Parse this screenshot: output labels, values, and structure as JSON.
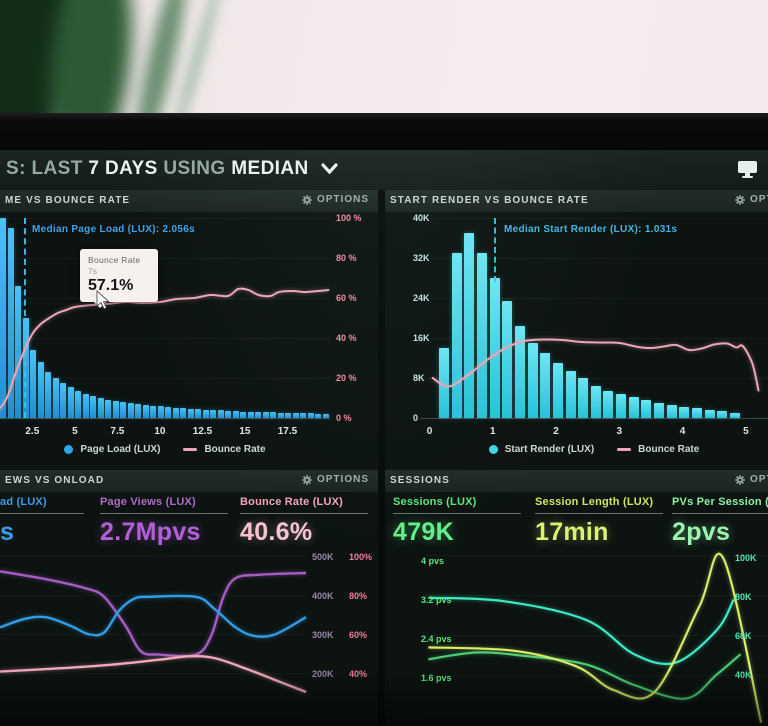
{
  "header": {
    "prefix": "S:",
    "word1": "LAST",
    "strong1": "7 DAYS",
    "word2": "USING",
    "strong2": "MEDIAN"
  },
  "panels": {
    "load_time": {
      "title": "ME VS BOUNCE RATE",
      "options": "OPTIONS",
      "median_label": "Median Page Load (LUX): 2.056s",
      "tooltip": {
        "title": "Bounce Rate",
        "sub": "7s",
        "value": "57.1%"
      },
      "y_right": [
        "100 %",
        "80 %",
        "60 %",
        "40 %",
        "20 %",
        "0 %"
      ],
      "x_ticks": [
        "2.5",
        "5",
        "7.5",
        "10",
        "12.5",
        "15",
        "17.5"
      ],
      "legend": {
        "bars": "Page Load (LUX)",
        "line": "Bounce Rate"
      }
    },
    "start_render": {
      "title": "START RENDER VS BOUNCE RATE",
      "options": "OPTIONS",
      "median_label": "Median Start Render (LUX): 1.031s",
      "y_left": [
        "40K",
        "32K",
        "24K",
        "16K",
        "8K",
        "0"
      ],
      "x_ticks": [
        "0",
        "1",
        "2",
        "3",
        "4",
        "5"
      ],
      "legend": {
        "bars": "Start Render (LUX)",
        "line": "Bounce Rate"
      }
    },
    "onload": {
      "title": "EWS VS ONLOAD",
      "options": "OPTIONS",
      "metrics": [
        {
          "label": "ad (LUX)",
          "value": "s"
        },
        {
          "label": "Page Views (LUX)",
          "value": "2.7Mpvs"
        },
        {
          "label": "Bounce Rate (LUX)",
          "value": "40.6%"
        }
      ],
      "y_rows": [
        {
          "k": "500K",
          "pct": "100%"
        },
        {
          "k": "400K",
          "pct": "80%"
        },
        {
          "k": "300K",
          "pct": "60%"
        },
        {
          "k": "200K",
          "pct": "40%"
        }
      ]
    },
    "sessions": {
      "title": "SESSIONS",
      "options": "OPTIONS",
      "metrics": [
        {
          "label": "Sessions (LUX)",
          "value": "479K"
        },
        {
          "label": "Session Length (LUX)",
          "value": "17min"
        },
        {
          "label": "PVs Per Session (LUX)",
          "value": "2pvs"
        }
      ],
      "y_left": [
        "4 pvs",
        "3.2 pvs",
        "2.4 pvs",
        "1.6 pvs"
      ],
      "y_right": [
        "100K",
        "80K",
        "60K",
        "40K"
      ]
    }
  },
  "colors": {
    "bar_blue": "#2ba6e8",
    "bar_cyan": "#3fd6e8",
    "bounce_pink": "#eda6b6",
    "median_cyan": "#38c6ea",
    "annotation_blue": "#3fa3e8",
    "axis_pink": "#ef8ba6",
    "purple": "#b45fd6",
    "pink_value": "#f8c3d1",
    "green": "#63ef89",
    "yellow_green": "#dbf271",
    "mint": "#9af4ae",
    "teal": "#3fe9c3"
  },
  "chart_data": [
    {
      "id": "load_time_vs_bounce_rate",
      "type": "histogram+line",
      "title": "ME VS BOUNCE RATE",
      "x_unit": "page load seconds",
      "x_ticks": [
        2.5,
        5,
        7.5,
        10,
        12.5,
        15,
        17.5
      ],
      "median_s": 2.056,
      "bars_series": "Page Load (LUX)",
      "bars_unit": "relative % of tallest bin (left axis not visible)",
      "bars": [
        100,
        95,
        66,
        50,
        34,
        28,
        23,
        20,
        17.5,
        15.5,
        13.5,
        12,
        11,
        10,
        9.2,
        8.6,
        8,
        7.5,
        7,
        6.6,
        6.2,
        5.8,
        5.5,
        5.2,
        4.9,
        4.7,
        4.4,
        4.2,
        4,
        3.8,
        3.6,
        3.4,
        3.2,
        3.1,
        3,
        2.9,
        2.8,
        2.7,
        2.6,
        2.5,
        2.4,
        2.3,
        2.2,
        2.1
      ],
      "line_series": "Bounce Rate",
      "line_unit": "percent (right axis 0-100%)",
      "line": [
        [
          0,
          2
        ],
        [
          0.5,
          4
        ],
        [
          1,
          10
        ],
        [
          1.5,
          22
        ],
        [
          2,
          33
        ],
        [
          2.5,
          42
        ],
        [
          3,
          47
        ],
        [
          3.5,
          50
        ],
        [
          4,
          52.5
        ],
        [
          4.5,
          54
        ],
        [
          5,
          55.5
        ],
        [
          6,
          56.5
        ],
        [
          7,
          57.1
        ],
        [
          8,
          58
        ],
        [
          9,
          57.5
        ],
        [
          10,
          58
        ],
        [
          11,
          59.5
        ],
        [
          12,
          60
        ],
        [
          13,
          61.5
        ],
        [
          14,
          61
        ],
        [
          14.6,
          64.5
        ],
        [
          15.2,
          64
        ],
        [
          15.8,
          61.5
        ],
        [
          16.5,
          61
        ],
        [
          17,
          63
        ],
        [
          17.8,
          63.5
        ],
        [
          18.5,
          63
        ],
        [
          19.3,
          63.5
        ],
        [
          19.9,
          64
        ]
      ],
      "highlight": {
        "x_s": 7,
        "bounce_rate_pct": 57.1
      }
    },
    {
      "id": "start_render_vs_bounce_rate",
      "type": "histogram+line",
      "title": "START RENDER VS BOUNCE RATE",
      "x_unit": "start render seconds",
      "x_ticks": [
        0,
        1,
        2,
        3,
        4,
        5
      ],
      "y_left_range_k": [
        0,
        40
      ],
      "median_s": 1.031,
      "bars_series": "Start Render (LUX)",
      "bars_unit": "sessions (thousands)",
      "bars": [
        14,
        33,
        37,
        33,
        28,
        23.5,
        18.5,
        15,
        13,
        11,
        9.5,
        8,
        6.5,
        5.5,
        4.8,
        4.2,
        3.6,
        3.1,
        2.7,
        2.3,
        2.0,
        1.7,
        1.4,
        1.1
      ],
      "line_series": "Bounce Rate",
      "line_unit": "thousands-equivalent height (own axis not visible)",
      "line": [
        [
          0.05,
          8
        ],
        [
          0.3,
          6.3
        ],
        [
          0.6,
          8.5
        ],
        [
          0.9,
          11.5
        ],
        [
          1.2,
          14
        ],
        [
          1.5,
          15.4
        ],
        [
          1.8,
          15.7
        ],
        [
          2.1,
          15.6
        ],
        [
          2.4,
          15.2
        ],
        [
          2.7,
          15.1
        ],
        [
          3,
          15
        ],
        [
          3.3,
          14.2
        ],
        [
          3.5,
          14
        ],
        [
          3.7,
          14.3
        ],
        [
          3.9,
          14.6
        ],
        [
          4.1,
          13.6
        ],
        [
          4.3,
          13.9
        ],
        [
          4.5,
          14.7
        ],
        [
          4.7,
          14.9
        ],
        [
          4.85,
          14.1
        ],
        [
          4.95,
          14.4
        ],
        [
          5.1,
          11
        ],
        [
          5.2,
          5.5
        ]
      ]
    },
    {
      "id": "pageviews_vs_onload",
      "type": "line",
      "title": "EWS VS ONLOAD",
      "summary": {
        "page_views": "2.7Mpvs",
        "bounce_rate": "40.6%"
      },
      "y_right_axis_rows": [
        [
          "500K",
          "100%"
        ],
        [
          "400K",
          "80%"
        ],
        [
          "300K",
          "60%"
        ],
        [
          "200K",
          "40%"
        ]
      ],
      "coords": "percent of plot, y measured downward from top",
      "series": [
        {
          "name": "ad (LUX)",
          "color": "blue",
          "points": [
            [
              0,
              42
            ],
            [
              8,
              37
            ],
            [
              15,
              36
            ],
            [
              23,
              41
            ],
            [
              29,
              46
            ],
            [
              34,
              45
            ],
            [
              39,
              32
            ],
            [
              44,
              25
            ],
            [
              49,
              24
            ],
            [
              64,
              24
            ],
            [
              70,
              31
            ],
            [
              77,
              42
            ],
            [
              83,
              47
            ],
            [
              90,
              46
            ],
            [
              100,
              36
            ]
          ]
        },
        {
          "name": "Page Views (LUX)",
          "color": "purple",
          "points": [
            [
              0,
              9
            ],
            [
              16,
              14
            ],
            [
              28,
              19
            ],
            [
              34,
              24
            ],
            [
              41,
              41
            ],
            [
              46,
              56
            ],
            [
              52,
              58
            ],
            [
              64,
              58
            ],
            [
              69,
              47
            ],
            [
              73,
              24
            ],
            [
              77,
              13
            ],
            [
              85,
              11
            ],
            [
              100,
              10
            ]
          ]
        },
        {
          "name": "Bounce Rate (LUX)",
          "color": "pink",
          "points": [
            [
              0,
              68
            ],
            [
              20,
              66
            ],
            [
              36,
              64
            ],
            [
              52,
              61
            ],
            [
              62,
              59
            ],
            [
              70,
              60
            ],
            [
              80,
              66
            ],
            [
              90,
              73
            ],
            [
              100,
              80
            ]
          ]
        }
      ]
    },
    {
      "id": "sessions",
      "type": "line",
      "title": "SESSIONS",
      "summary": {
        "sessions": "479K",
        "session_length": "17min",
        "pvs_per_session": "2pvs"
      },
      "y_left_axis_pvs": [
        4,
        3.2,
        2.4,
        1.6
      ],
      "y_right_axis_k": [
        100,
        80,
        60,
        40
      ],
      "coords": "percent of plot, y measured downward from top",
      "series": [
        {
          "name": "Sessions (LUX)",
          "color": "teal",
          "points": [
            [
              1,
              25
            ],
            [
              23,
              27
            ],
            [
              47,
              38
            ],
            [
              61,
              58
            ],
            [
              73,
              63
            ],
            [
              85,
              44
            ],
            [
              90,
              26
            ]
          ]
        },
        {
          "name": "PVs Per Session (LUX)",
          "color": "green",
          "points": [
            [
              1,
              61
            ],
            [
              15,
              57
            ],
            [
              29,
              59
            ],
            [
              47,
              64
            ],
            [
              61,
              76
            ],
            [
              76,
              84
            ],
            [
              85,
              70
            ],
            [
              92,
              58
            ]
          ]
        },
        {
          "name": "Session Length (LUX)",
          "color": "yellow",
          "points": [
            [
              1,
              54
            ],
            [
              26,
              56
            ],
            [
              44,
              65
            ],
            [
              55,
              79
            ],
            [
              67,
              80
            ],
            [
              80,
              30
            ],
            [
              87,
              2
            ],
            [
              98,
              98
            ]
          ]
        }
      ]
    }
  ]
}
